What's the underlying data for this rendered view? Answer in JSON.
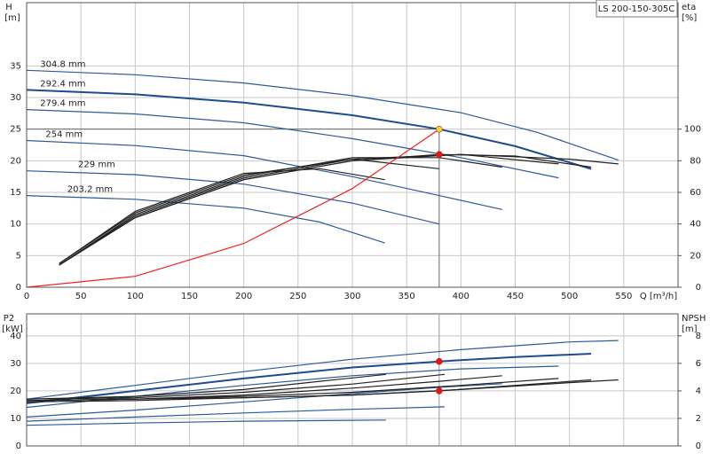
{
  "chart_data": [
    {
      "type": "line",
      "title": "LS 200-150-305C",
      "y_label": "H",
      "y_unit": "[m]",
      "y2_label": "eta",
      "y2_unit": "[%]",
      "x_label": "Q [m³/h]",
      "xlim": [
        0,
        600
      ],
      "xticks": [
        0,
        50,
        100,
        150,
        200,
        250,
        300,
        350,
        400,
        450,
        500,
        550
      ],
      "ylim": [
        0,
        45
      ],
      "yticks": [
        0,
        5,
        10,
        15,
        20,
        25,
        30,
        35
      ],
      "y2lim": [
        0,
        180
      ],
      "y2ticks": [
        0,
        20,
        40,
        60,
        80,
        100
      ],
      "grid": true,
      "series": [
        {
          "name": "304.8 mm",
          "color": "#2b5b96",
          "x": [
            0,
            100,
            200,
            300,
            400,
            470,
            545
          ],
          "values": [
            34.3,
            33.6,
            32.3,
            30.3,
            27.6,
            24.5,
            20.1
          ]
        },
        {
          "name": "292.4 mm",
          "color": "#1d4c8c",
          "x": [
            0,
            100,
            200,
            300,
            380,
            450,
            520
          ],
          "values": [
            31.2,
            30.5,
            29.2,
            27.2,
            25,
            22.3,
            18.7
          ]
        },
        {
          "name": "279.4 mm",
          "color": "#2b5b96",
          "x": [
            0,
            100,
            200,
            300,
            400,
            490
          ],
          "values": [
            28.1,
            27.4,
            26,
            23.5,
            20.5,
            17.3
          ]
        },
        {
          "name": "254 mm",
          "color": "#2b5b96",
          "x": [
            0,
            100,
            200,
            300,
            380,
            438
          ],
          "values": [
            23.2,
            22.4,
            20.8,
            17.5,
            14.5,
            12.3
          ]
        },
        {
          "name": "229 mm",
          "color": "#2b5b96",
          "x": [
            0,
            100,
            200,
            300,
            380
          ],
          "values": [
            18.4,
            17.8,
            16.3,
            13.3,
            10
          ]
        },
        {
          "name": "203.2 mm",
          "color": "#2b5b96",
          "x": [
            0,
            100,
            200,
            270,
            330
          ],
          "values": [
            14.5,
            13.9,
            12.5,
            10.3,
            7
          ]
        },
        {
          "color": "#222222",
          "axis": "y2",
          "x": [
            30,
            100,
            200,
            300,
            400,
            500,
            545
          ],
          "values": [
            14,
            44,
            68,
            80,
            84,
            81,
            78
          ]
        },
        {
          "color": "#222222",
          "axis": "y2",
          "x": [
            30,
            100,
            200,
            300,
            380,
            450,
            520
          ],
          "values": [
            14,
            44,
            68,
            80,
            84,
            83,
            76
          ]
        },
        {
          "color": "#222222",
          "axis": "y2",
          "x": [
            30,
            100,
            200,
            300,
            400,
            490
          ],
          "values": [
            14,
            45,
            69,
            81,
            84,
            78
          ]
        },
        {
          "color": "#222222",
          "axis": "y2",
          "x": [
            30,
            100,
            200,
            300,
            380,
            438
          ],
          "values": [
            14,
            46,
            70,
            82,
            82,
            76
          ]
        },
        {
          "color": "#222222",
          "axis": "y2",
          "x": [
            30,
            100,
            200,
            300,
            380
          ],
          "values": [
            15,
            47,
            71,
            81,
            75
          ]
        },
        {
          "color": "#222222",
          "axis": "y2",
          "x": [
            30,
            100,
            200,
            270,
            330
          ],
          "values": [
            15,
            48,
            72,
            75,
            68
          ]
        },
        {
          "color": "#ee2222",
          "x": [
            0,
            100,
            200,
            300,
            380
          ],
          "values": [
            0,
            1.73,
            6.93,
            15.6,
            25
          ]
        }
      ],
      "points": [
        {
          "x": 380,
          "y": 25,
          "color": "#ffd21e"
        },
        {
          "x": 380,
          "y": 84,
          "axis": "y2",
          "color": "#ee1111"
        }
      ]
    },
    {
      "type": "line",
      "y_label": "P2",
      "y_unit": "[kW]",
      "y2_label": "NPSH",
      "y2_unit": "[m]",
      "xlim": [
        0,
        600
      ],
      "ylim": [
        0,
        48
      ],
      "yticks": [
        0,
        10,
        20,
        30,
        40
      ],
      "y2lim": [
        0,
        9.6
      ],
      "y2ticks": [
        0,
        2,
        4,
        6,
        8
      ],
      "grid": true,
      "series": [
        {
          "color": "#2b5b96",
          "x": [
            0,
            100,
            200,
            300,
            400,
            500,
            545
          ],
          "values": [
            17,
            22,
            27,
            31.5,
            35,
            37.8,
            38.3
          ]
        },
        {
          "color": "#1d4c8c",
          "x": [
            0,
            100,
            200,
            300,
            380,
            450,
            520
          ],
          "values": [
            15.5,
            20,
            24.5,
            28.5,
            30.7,
            32.3,
            33.5
          ]
        },
        {
          "color": "#2b5b96",
          "x": [
            0,
            100,
            200,
            300,
            400,
            490
          ],
          "values": [
            14,
            18,
            22,
            25.5,
            28,
            29
          ]
        },
        {
          "color": "#2b5b96",
          "x": [
            0,
            100,
            200,
            300,
            380,
            438
          ],
          "values": [
            10.5,
            13,
            16,
            19,
            21.3,
            22.6
          ]
        },
        {
          "color": "#2b5b96",
          "x": [
            0,
            100,
            200,
            300,
            385
          ],
          "values": [
            9,
            10.5,
            12,
            13.3,
            14.2
          ]
        },
        {
          "color": "#2b5b96",
          "x": [
            0,
            100,
            200,
            331
          ],
          "values": [
            7.5,
            8.3,
            9,
            9.4
          ]
        },
        {
          "color": "#222222",
          "axis": "y2",
          "x": [
            0,
            100,
            200,
            300,
            400,
            500,
            545
          ],
          "values": [
            3.2,
            3.3,
            3.5,
            3.7,
            4.1,
            4.6,
            4.8
          ]
        },
        {
          "color": "#222222",
          "axis": "y2",
          "x": [
            0,
            100,
            200,
            300,
            380,
            450,
            520
          ],
          "values": [
            3.3,
            3.4,
            3.5,
            3.7,
            4,
            4.4,
            4.8
          ]
        },
        {
          "color": "#222222",
          "axis": "y2",
          "x": [
            0,
            100,
            200,
            300,
            400,
            490
          ],
          "values": [
            3.3,
            3.4,
            3.6,
            3.9,
            4.4,
            4.9
          ]
        },
        {
          "color": "#222222",
          "axis": "y2",
          "x": [
            0,
            100,
            200,
            300,
            380,
            438
          ],
          "values": [
            3.3,
            3.4,
            3.7,
            4.2,
            4.7,
            5.1
          ]
        },
        {
          "color": "#222222",
          "axis": "y2",
          "x": [
            0,
            100,
            200,
            300,
            385
          ],
          "values": [
            3.4,
            3.5,
            3.9,
            4.5,
            5.2
          ]
        },
        {
          "color": "#222222",
          "axis": "y2",
          "x": [
            0,
            100,
            200,
            270,
            331
          ],
          "values": [
            3.4,
            3.6,
            4.1,
            4.7,
            5.2
          ]
        }
      ],
      "points": [
        {
          "x": 380,
          "y": 30.7,
          "color": "#ee1111"
        },
        {
          "x": 380,
          "y": 4,
          "axis": "y2",
          "color": "#ee1111"
        }
      ]
    }
  ]
}
